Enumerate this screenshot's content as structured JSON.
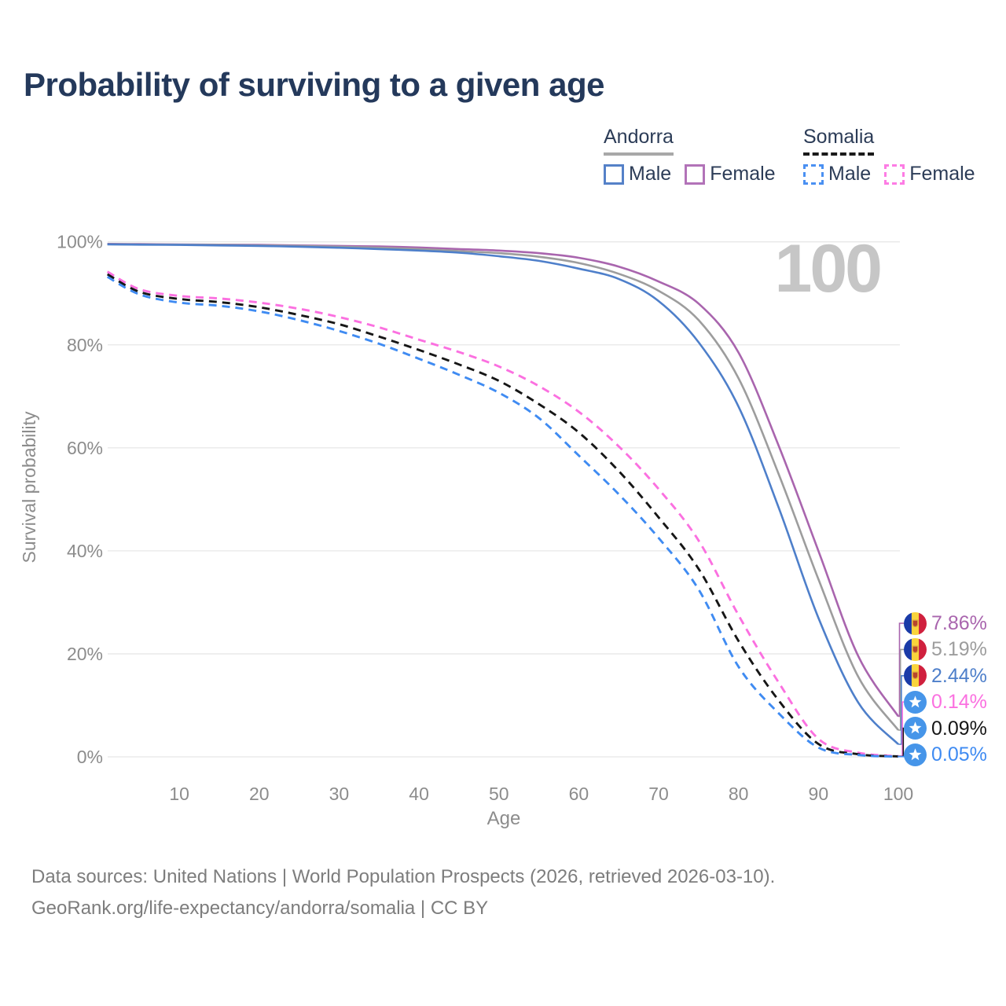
{
  "title": "Probability of surviving to a given age",
  "age_counter": "100",
  "legend": {
    "groups": [
      {
        "label": "Andorra",
        "line_style": "solid",
        "underline_color": "#a8a8a8",
        "items": [
          {
            "label": "Male",
            "color": "#5581c8",
            "dash": false
          },
          {
            "label": "Female",
            "color": "#b273b8",
            "dash": false
          }
        ]
      },
      {
        "label": "Somalia",
        "line_style": "dashed",
        "underline_color": "#1a1a1a",
        "items": [
          {
            "label": "Male",
            "color": "#4a90f2",
            "dash": true
          },
          {
            "label": "Female",
            "color": "#fd7ce4",
            "dash": true
          }
        ]
      }
    ]
  },
  "axes": {
    "y_title": "Survival probability",
    "x_title": "Age",
    "y_ticks": [
      {
        "label": "100%",
        "value": 100
      },
      {
        "label": "80%",
        "value": 80
      },
      {
        "label": "60%",
        "value": 60
      },
      {
        "label": "40%",
        "value": 40
      },
      {
        "label": "20%",
        "value": 20
      },
      {
        "label": "0%",
        "value": 0
      }
    ],
    "x_ticks": [
      {
        "label": "10",
        "value": 10
      },
      {
        "label": "20",
        "value": 20
      },
      {
        "label": "30",
        "value": 30
      },
      {
        "label": "40",
        "value": 40
      },
      {
        "label": "50",
        "value": 50
      },
      {
        "label": "60",
        "value": 60
      },
      {
        "label": "70",
        "value": 70
      },
      {
        "label": "80",
        "value": 80
      },
      {
        "label": "90",
        "value": 90
      },
      {
        "label": "100",
        "value": 100
      }
    ]
  },
  "chart_data": {
    "type": "line",
    "title": "Probability of surviving to a given age",
    "xlabel": "Age",
    "ylabel": "Survival probability",
    "xlim": [
      0,
      100
    ],
    "ylim": [
      0,
      100
    ],
    "grid": "horizontal",
    "legend_position": "top-right",
    "x": [
      1,
      5,
      10,
      15,
      20,
      25,
      30,
      35,
      40,
      45,
      50,
      55,
      60,
      65,
      70,
      75,
      80,
      85,
      90,
      95,
      100
    ],
    "series": [
      {
        "name": "Andorra Female",
        "country": "Andorra",
        "sex": "Female",
        "color": "#a965ae",
        "dash": false,
        "flag": "andorra",
        "end_label": "7.86%",
        "values": [
          99.6,
          99.55,
          99.5,
          99.45,
          99.4,
          99.3,
          99.2,
          99.1,
          98.9,
          98.6,
          98.3,
          97.8,
          96.9,
          95.2,
          92.3,
          88.0,
          78.5,
          60.5,
          40.0,
          19.5,
          7.86
        ]
      },
      {
        "name": "Andorra Both sexes",
        "country": "Andorra",
        "sex": "Both sexes",
        "color": "#9d9d9d",
        "dash": false,
        "flag": "andorra",
        "end_label": "5.19%",
        "values": [
          99.55,
          99.5,
          99.45,
          99.4,
          99.3,
          99.2,
          99.05,
          98.85,
          98.6,
          98.2,
          97.8,
          97.1,
          95.9,
          93.8,
          90.5,
          84.8,
          73.5,
          55.0,
          34.5,
          15.5,
          5.19
        ]
      },
      {
        "name": "Andorra Male",
        "country": "Andorra",
        "sex": "Male",
        "color": "#4e7fca",
        "dash": false,
        "flag": "andorra",
        "end_label": "2.44%",
        "values": [
          99.5,
          99.45,
          99.4,
          99.3,
          99.2,
          99.05,
          98.85,
          98.6,
          98.3,
          97.9,
          97.2,
          96.3,
          94.8,
          92.8,
          88.5,
          80.5,
          68.0,
          48.5,
          27.0,
          10.5,
          2.44
        ]
      },
      {
        "name": "Somalia Female",
        "country": "Somalia",
        "sex": "Female",
        "color": "#fb70e0",
        "dash": true,
        "flag": "somalia",
        "end_label": "0.14%",
        "values": [
          94.2,
          90.8,
          89.5,
          89.0,
          88.2,
          87.0,
          85.4,
          83.4,
          81.0,
          78.6,
          75.8,
          72.0,
          67.0,
          60.3,
          52.0,
          42.0,
          27.5,
          14.5,
          3.5,
          0.8,
          0.14
        ]
      },
      {
        "name": "Somalia Both sexes",
        "country": "Somalia",
        "sex": "Both sexes",
        "color": "#161616",
        "dash": true,
        "flag": "somalia",
        "end_label": "0.09%",
        "values": [
          93.7,
          90.3,
          88.9,
          88.3,
          87.3,
          85.8,
          84.0,
          81.6,
          79.0,
          76.2,
          73.0,
          68.5,
          63.0,
          55.5,
          46.5,
          36.5,
          22.5,
          11.0,
          2.5,
          0.5,
          0.09
        ]
      },
      {
        "name": "Somalia Male",
        "country": "Somalia",
        "sex": "Male",
        "color": "#3f8bf2",
        "dash": true,
        "flag": "somalia",
        "end_label": "0.05%",
        "values": [
          93.2,
          89.8,
          88.2,
          87.6,
          86.5,
          84.8,
          82.7,
          80.2,
          77.3,
          74.2,
          70.7,
          65.8,
          58.5,
          51.0,
          42.5,
          32.5,
          17.5,
          8.5,
          1.8,
          0.35,
          0.05
        ]
      }
    ]
  },
  "footer": {
    "line1": "Data sources: United Nations | World Population Prospects (2026, retrieved 2026-03-10).",
    "line2": "GeoRank.org/life-expectancy/andorra/somalia | CC BY"
  }
}
